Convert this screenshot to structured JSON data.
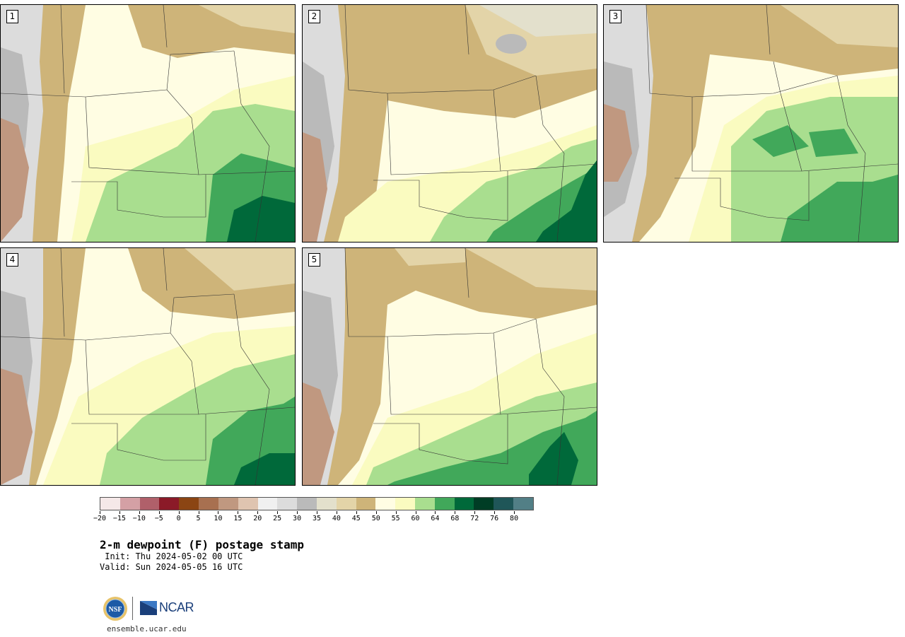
{
  "panels": [
    {
      "label": "1"
    },
    {
      "label": "2"
    },
    {
      "label": "3"
    },
    {
      "label": "4"
    },
    {
      "label": "5"
    }
  ],
  "colorbar": {
    "colors": [
      "#f5e8e8",
      "#d4a0a5",
      "#b0606a",
      "#8b1a28",
      "#8b4513",
      "#a87050",
      "#c09880",
      "#dfc4b0",
      "#f0f0f0",
      "#dcdcdc",
      "#bababa",
      "#e3e0cc",
      "#e3d4a8",
      "#ceb479",
      "#fffde3",
      "#fafbc0",
      "#a9de8f",
      "#41a85a",
      "#00693a",
      "#003d25",
      "#1f5658",
      "#527f86"
    ],
    "tick_labels": [
      "−20",
      "−15",
      "−10",
      "−5",
      "0",
      "5",
      "10",
      "15",
      "20",
      "25",
      "30",
      "35",
      "40",
      "45",
      "50",
      "55",
      "60",
      "64",
      "68",
      "72",
      "76",
      "80"
    ]
  },
  "title": "2-m dewpoint (F) postage stamp",
  "init": " Init: Thu 2024-05-02 00 UTC",
  "valid": "Valid: Sun 2024-05-05 16 UTC",
  "logos": {
    "nsf": "NSF",
    "ncar": "NCAR"
  },
  "url": "ensemble.ucar.edu"
}
